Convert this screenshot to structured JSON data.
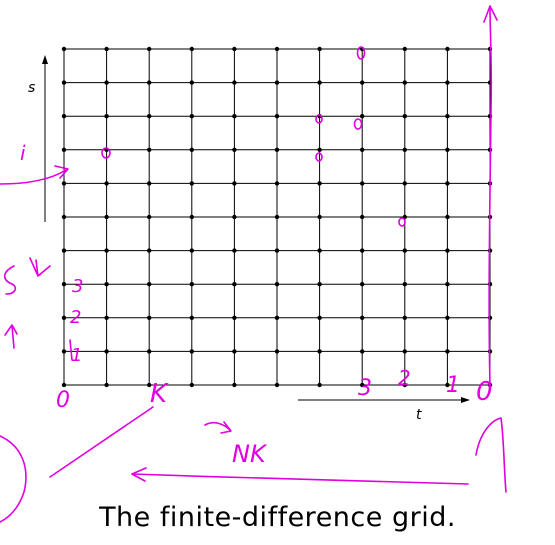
{
  "diagram": {
    "axis_s_label": "s",
    "axis_t_label": "t",
    "grid_columns": 10,
    "grid_rows": 10,
    "line_color": "#000000",
    "node_color": "#000000"
  },
  "handwriting": {
    "ink_color": "#e000e0",
    "labels": {
      "origin": "0",
      "i": "i",
      "k": "K",
      "row_1": "1",
      "row_2": "2",
      "row_3": "3",
      "col_3": "3",
      "col_2": "2",
      "col_1": "1",
      "end_0": "0",
      "nk": "NK"
    }
  },
  "caption": "The finite-difference grid."
}
